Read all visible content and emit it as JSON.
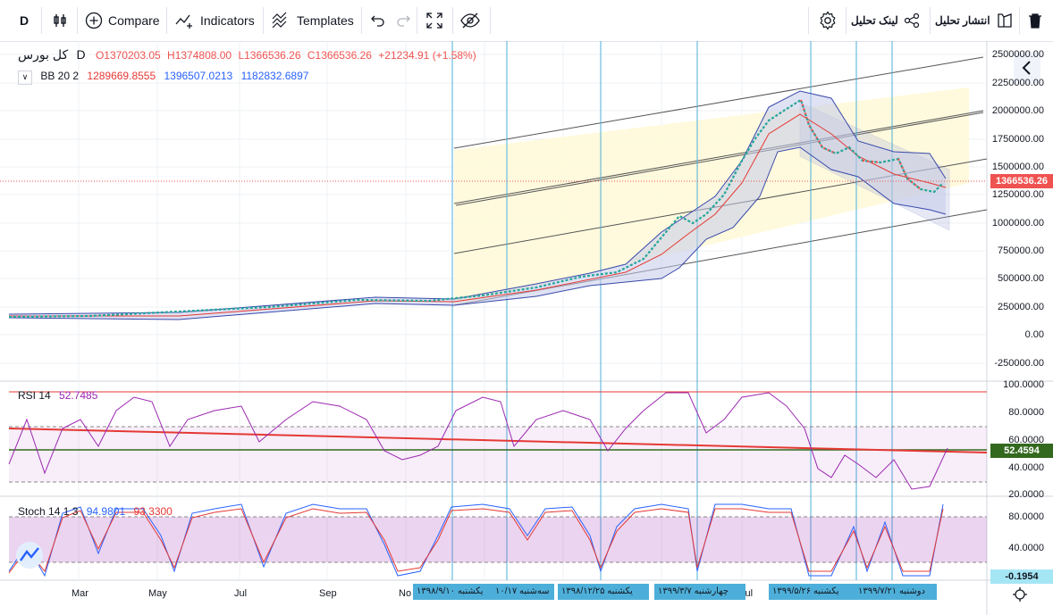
{
  "toolbar": {
    "interval": "D",
    "compare_label": "Compare",
    "indicators_label": "Indicators",
    "templates_label": "Templates",
    "share_link_label": "لینک تحلیل",
    "publish_label": "انتشار تحلیل"
  },
  "symbol": {
    "name": "کل بورس",
    "interval": "D",
    "open": "O1370203.05",
    "high": "H1374808.00",
    "low": "L1366536.26",
    "close": "C1366536.26",
    "change": "+21234.91 (+1.58%)"
  },
  "bb": {
    "label": "BB 20 2",
    "basis": "1289669.8555",
    "upper": "1396507.0213",
    "lower": "1182832.6897"
  },
  "rsi": {
    "label": "RSI 14",
    "value": "52.7485",
    "tag": "52.4594"
  },
  "stoch": {
    "label": "Stoch 14 1 3",
    "k": "94.9801",
    "d": "93.3300",
    "tag": "-0.1954"
  },
  "price_axis": [
    "2500000.00",
    "2250000.00",
    "2000000.00",
    "1750000.00",
    "1500000.00",
    "1250000.00",
    "1000000.00",
    "750000.00",
    "500000.00",
    "250000.00",
    "0.00",
    "-250000.00"
  ],
  "price_tag": "1366536.26",
  "rsi_axis": [
    "100.0000",
    "80.0000",
    "60.0000",
    "40.0000",
    "20.0000"
  ],
  "stoch_axis": [
    "80.0000",
    "40.0000"
  ],
  "months": [
    "Mar",
    "May",
    "Jul",
    "Sep",
    "No",
    "Jul"
  ],
  "date_tags": [
    "۱۳۹۸/۹/۱۰ یکشنبه",
    "۱۰/۱۷ سه‌شنبه",
    "۱۳۹۸/۱۲/۲۵ یکشنبه",
    "۱۳۹۹/۳/۷ چهارشنبه",
    "۱۳۹۹/۵/۲۶ یکشنبه",
    "۱۳۹۹/۷/۲۱ دوشنبه"
  ],
  "colors": {
    "up": "#26a69a",
    "down": "#ef5350",
    "bb_upper": "#2962ff",
    "bb_basis": "#e53935",
    "rsi": "#9c27b0",
    "accent": "#2962ff",
    "date_tag": "#4dafd9"
  }
}
